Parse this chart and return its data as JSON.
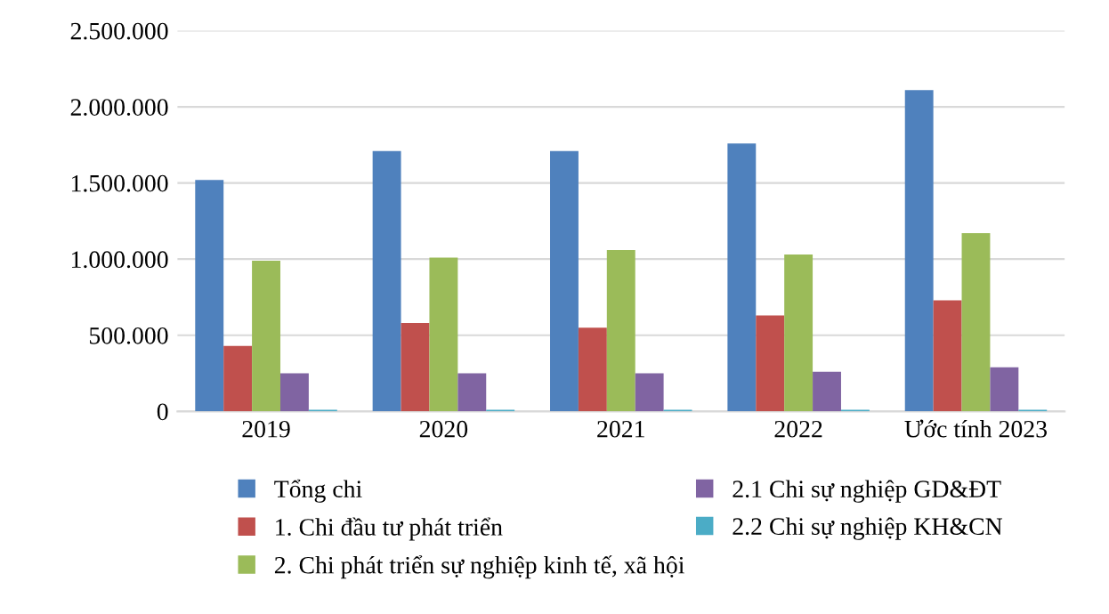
{
  "chart_data": {
    "type": "bar",
    "categories": [
      "2019",
      "2020",
      "2021",
      "2022",
      "Ước tính 2023"
    ],
    "series": [
      {
        "name": "Tổng chi",
        "color": "#4f81bd",
        "values": [
          1520000,
          1710000,
          1710000,
          1760000,
          2110000
        ]
      },
      {
        "name": "1. Chi đầu tư phát triển",
        "color": "#c0504d",
        "values": [
          430000,
          580000,
          550000,
          630000,
          730000
        ]
      },
      {
        "name": "2. Chi phát triển sự nghiệp kinh tế, xã hội",
        "color": "#9bbb59",
        "values": [
          990000,
          1010000,
          1060000,
          1030000,
          1170000
        ]
      },
      {
        "name": "2.1 Chi sự nghiệp GD&ĐT",
        "color": "#8064a2",
        "values": [
          250000,
          250000,
          250000,
          260000,
          290000
        ]
      },
      {
        "name": "2.2 Chi sự nghiệp KH&CN",
        "color": "#4bacc6",
        "values": [
          10000,
          10000,
          10000,
          10000,
          10000
        ]
      }
    ],
    "ylim": [
      0,
      2500000
    ],
    "yticks": [
      0,
      {
        "value": 500000,
        "label": "500.000"
      },
      {
        "value": 1000000,
        "label": "1.000.000"
      },
      {
        "value": 1500000,
        "label": "1.500.000"
      },
      {
        "value": 2000000,
        "label": "2.000.000"
      },
      {
        "value": 2500000,
        "label": "2.500.000"
      }
    ],
    "grid": "y",
    "legend": "bottom"
  }
}
